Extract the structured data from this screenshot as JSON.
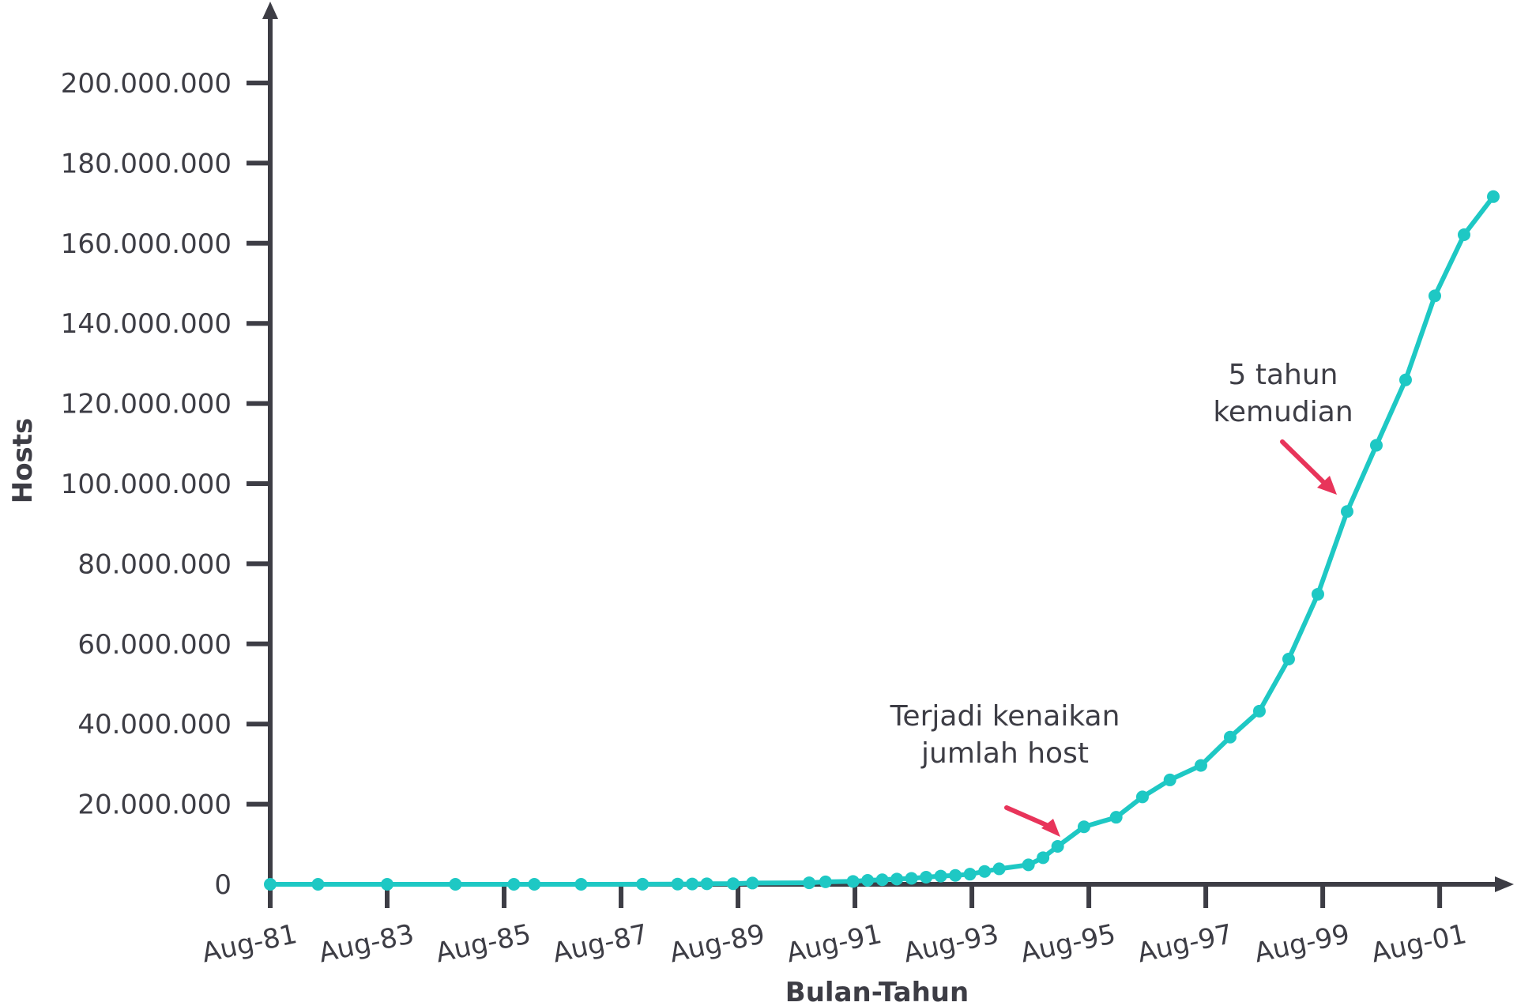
{
  "chart_data": {
    "type": "line",
    "xlabel": "Bulan-Tahun",
    "ylabel": "Hosts",
    "ylim": [
      0,
      200000000
    ],
    "xlim": [
      1981.583,
      2002.5
    ],
    "grid": false,
    "x_ticks": [
      {
        "x": 1981.583,
        "label": "Aug-81"
      },
      {
        "x": 1983.583,
        "label": "Aug-83"
      },
      {
        "x": 1985.583,
        "label": "Aug-85"
      },
      {
        "x": 1987.583,
        "label": "Aug-87"
      },
      {
        "x": 1989.583,
        "label": "Aug-89"
      },
      {
        "x": 1991.583,
        "label": "Aug-91"
      },
      {
        "x": 1993.583,
        "label": "Aug-93"
      },
      {
        "x": 1995.583,
        "label": "Aug-95"
      },
      {
        "x": 1997.583,
        "label": "Aug-97"
      },
      {
        "x": 1999.583,
        "label": "Aug-99"
      },
      {
        "x": 2001.583,
        "label": "Aug-01"
      }
    ],
    "y_ticks": [
      {
        "y": 0,
        "label": "0"
      },
      {
        "y": 20000000,
        "label": "20.000.000"
      },
      {
        "y": 40000000,
        "label": "40.000.000"
      },
      {
        "y": 60000000,
        "label": "60.000.000"
      },
      {
        "y": 80000000,
        "label": "80.000.000"
      },
      {
        "y": 100000000,
        "label": "100.000.000"
      },
      {
        "y": 120000000,
        "label": "120.000.000"
      },
      {
        "y": 140000000,
        "label": "140.000.000"
      },
      {
        "y": 160000000,
        "label": "160.000.000"
      },
      {
        "y": 180000000,
        "label": "180.000.000"
      },
      {
        "y": 200000000,
        "label": "200.000.000"
      }
    ],
    "series": [
      {
        "color": "#1ec8c4",
        "x": [
          1981.583,
          1982.4,
          1983.583,
          1984.75,
          1985.75,
          1986.1,
          1986.9,
          1987.95,
          1988.55,
          1988.8,
          1989.05,
          1989.5,
          1989.83,
          1990.8,
          1991.08,
          1991.55,
          1991.8,
          1992.05,
          1992.3,
          1992.55,
          1992.8,
          1993.05,
          1993.3,
          1993.55,
          1993.8,
          1994.05,
          1994.55,
          1994.8,
          1995.05,
          1995.5,
          1996.05,
          1996.5,
          1996.97,
          1997.5,
          1998.0,
          1998.5,
          1999.0,
          1999.5,
          2000.0,
          2000.5,
          2001.0,
          2001.5,
          2002.0,
          2002.5
        ],
        "values": [
          213,
          235,
          562,
          1024,
          1961,
          2308,
          5089,
          28174,
          56000,
          80000,
          130000,
          159000,
          313000,
          376000,
          617000,
          727000,
          992000,
          1136000,
          1313000,
          1486000,
          1776000,
          2056000,
          2217000,
          2528000,
          3212000,
          3864000,
          4852000,
          6642000,
          9472000,
          14352000,
          16729000,
          21819000,
          26053000,
          29670000,
          36739000,
          43230000,
          56218000,
          72398000,
          93047000,
          109574000,
          125888000,
          146861000,
          162128000,
          171638000
        ]
      }
    ],
    "annotations": [
      {
        "lines": [
          "Terjadi kenaikan",
          "jumlah host"
        ],
        "points_to": {
          "x": 1995.0,
          "y": 9472000
        }
      },
      {
        "lines": [
          "5 tahun",
          "kemudian"
        ],
        "points_to": {
          "x": 2000.0,
          "y": 93047000
        }
      }
    ],
    "colors": {
      "axis": "#3d3d45",
      "line": "#1ec8c4",
      "arrow": "#e8345a",
      "text": "#3d3d45"
    }
  }
}
